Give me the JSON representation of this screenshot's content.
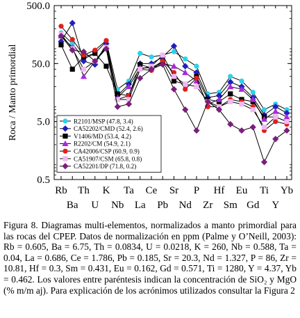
{
  "chart_data": {
    "type": "line",
    "title": "",
    "ylabel": "Roca / Manto primordial",
    "xlabel": "",
    "y_scale": "log",
    "ylim": [
      0.5,
      500
    ],
    "y_ticks": [
      "500.0",
      "50.0",
      "5.0",
      "0.5"
    ],
    "y_tick_values": [
      500,
      50,
      5,
      0.5
    ],
    "categories": [
      "Rb",
      "Ba",
      "Th",
      "U",
      "K",
      "Nb",
      "Ta",
      "La",
      "Ce",
      "Pb",
      "Sr",
      "Nd",
      "P",
      "Zr",
      "Hf",
      "Sm",
      "Eu",
      "Gd",
      "Ti",
      "Y",
      "Yb"
    ],
    "legend_position": "bottom-left",
    "series": [
      {
        "name": "R2101/MSP (47.8, 3.4)",
        "color": "#2ad2ea",
        "marker": "circle",
        "values": [
          170,
          110,
          60,
          75,
          120,
          18,
          25,
          75,
          65,
          70,
          80,
          60,
          45,
          15,
          16,
          30,
          25,
          16,
          8,
          10,
          8
        ]
      },
      {
        "name": "CA52202/CMD (52.4, 2.6)",
        "color": "#1f1fbf",
        "marker": "diamond",
        "values": [
          120,
          250,
          55,
          48,
          110,
          14,
          22,
          50,
          50,
          65,
          100,
          45,
          35,
          13,
          14,
          24,
          20,
          13,
          6.5,
          9,
          7
        ]
      },
      {
        "name": "V1406/MD (53.4, 4.2)",
        "color": "#000000",
        "marker": "square",
        "values": [
          105,
          40,
          65,
          75,
          45,
          15,
          14,
          48,
          42,
          55,
          25,
          22,
          30,
          12,
          11,
          15,
          12,
          11,
          6,
          6,
          5
        ]
      },
      {
        "name": "R2202/CM (54.9, 2.1)",
        "color": "#a829e0",
        "marker": "triangle",
        "values": [
          150,
          95,
          30,
          55,
          100,
          13,
          20,
          42,
          42,
          50,
          45,
          35,
          25,
          10,
          12,
          20,
          18,
          12,
          5.5,
          7.5,
          6
        ]
      },
      {
        "name": "CA42006/CSP (60.9, 0.9)",
        "color": "#e2201c",
        "marker": "circle",
        "values": [
          220,
          130,
          70,
          85,
          125,
          12,
          14,
          40,
          38,
          55,
          35,
          18,
          28,
          9,
          9,
          12,
          11,
          9,
          3.5,
          5,
          4.5
        ]
      },
      {
        "name": "CA51907/CSM (65.8, 0.8)",
        "color": "#f2b8f2",
        "marker": "square",
        "values": [
          160,
          90,
          40,
          55,
          95,
          12,
          12,
          40,
          45,
          70,
          30,
          22,
          20,
          11,
          9,
          11,
          10,
          8,
          4,
          6,
          5
        ]
      },
      {
        "name": "CA52201/DP (71.8, 0.2)",
        "color": "#7a1e7e",
        "marker": "diamond",
        "values": [
          150,
          85,
          80,
          55,
          90,
          9,
          10,
          28,
          40,
          48,
          18,
          8,
          3.5,
          11,
          8,
          4.5,
          3.5,
          4,
          1,
          2.5,
          3.5
        ]
      }
    ]
  },
  "caption": "Figura 8. Diagramas multi-elementos, normalizados a manto primordial para las rocas del CPEP. Datos de normalización en ppm (Palme y O’Neill, 2003): Rb = 0.605, Ba = 6.75, Th = 0.0834, U = 0.0218, K = 260, Nb = 0.588, Ta = 0.04, La = 0.686, Ce = 1.786, Pb = 0.185, Sr = 20.3, Nd = 1.327, P = 86, Zr = 10.81, Hf = 0.3, Sm = 0.431, Eu = 0.162, Gd = 0.571, Ti = 1280, Y = 4.37, Yb = 0.462. Los valores entre paréntesis indican la concentración de SiO₂ y MgO (% m/m aj). Para explicación de los acrónimos utilizados consultar la Figura 2"
}
